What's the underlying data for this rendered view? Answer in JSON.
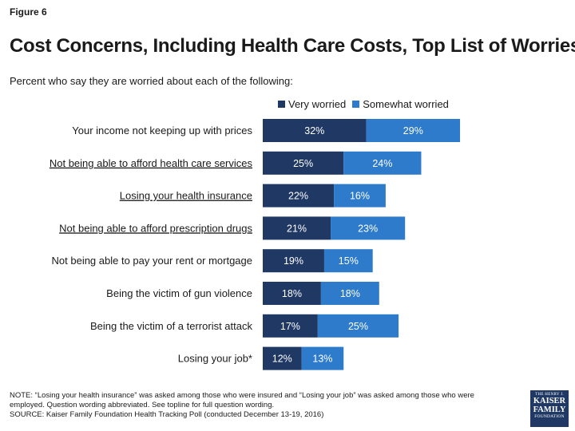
{
  "figure_label": "Figure 6",
  "title": "Cost Concerns, Including Health Care Costs, Top List of Worries",
  "subtitle": "Percent who say they are worried about each of the following:",
  "colors": {
    "very": "#1f3864",
    "somewhat": "#2e7bcc"
  },
  "chart_data": {
    "type": "bar",
    "orientation": "horizontal",
    "stacked": true,
    "legend_position": "top",
    "grid": false,
    "categories": [
      "Your income not keeping up with prices",
      "Not being able to afford health care services",
      "Losing your health insurance",
      "Not being able to afford prescription drugs",
      "Not being able to pay your rent or mortgage",
      "Being the victim of gun violence",
      "Being the victim of a terrorist attack",
      "Losing your job*"
    ],
    "underlined": [
      false,
      true,
      true,
      true,
      false,
      false,
      false,
      false
    ],
    "series": [
      {
        "name": "Very worried",
        "values": [
          32,
          25,
          22,
          21,
          19,
          18,
          17,
          12
        ],
        "labels": [
          "32%",
          "25%",
          "22%",
          "21%",
          "19%",
          "18%",
          "17%",
          "12%"
        ]
      },
      {
        "name": "Somewhat worried",
        "values": [
          29,
          24,
          16,
          23,
          15,
          18,
          25,
          13
        ],
        "labels": [
          "29%",
          "24%",
          "16%",
          "23%",
          "15%",
          "18%",
          "25%",
          "13%"
        ]
      }
    ]
  },
  "note": {
    "line1": "NOTE: “Losing your health insurance” was asked among those who were insured and “Losing your job” was asked among those who were",
    "line2": "employed. Question wording abbreviated. See topline for full question wording.",
    "line3": "SOURCE: Kaiser Family Foundation Health Tracking Poll (conducted December 13-19, 2016)"
  },
  "logo": {
    "line1": "THE HENRY J.",
    "line2": "KAISER",
    "line3": "FAMILY",
    "line4": "FOUNDATION"
  }
}
